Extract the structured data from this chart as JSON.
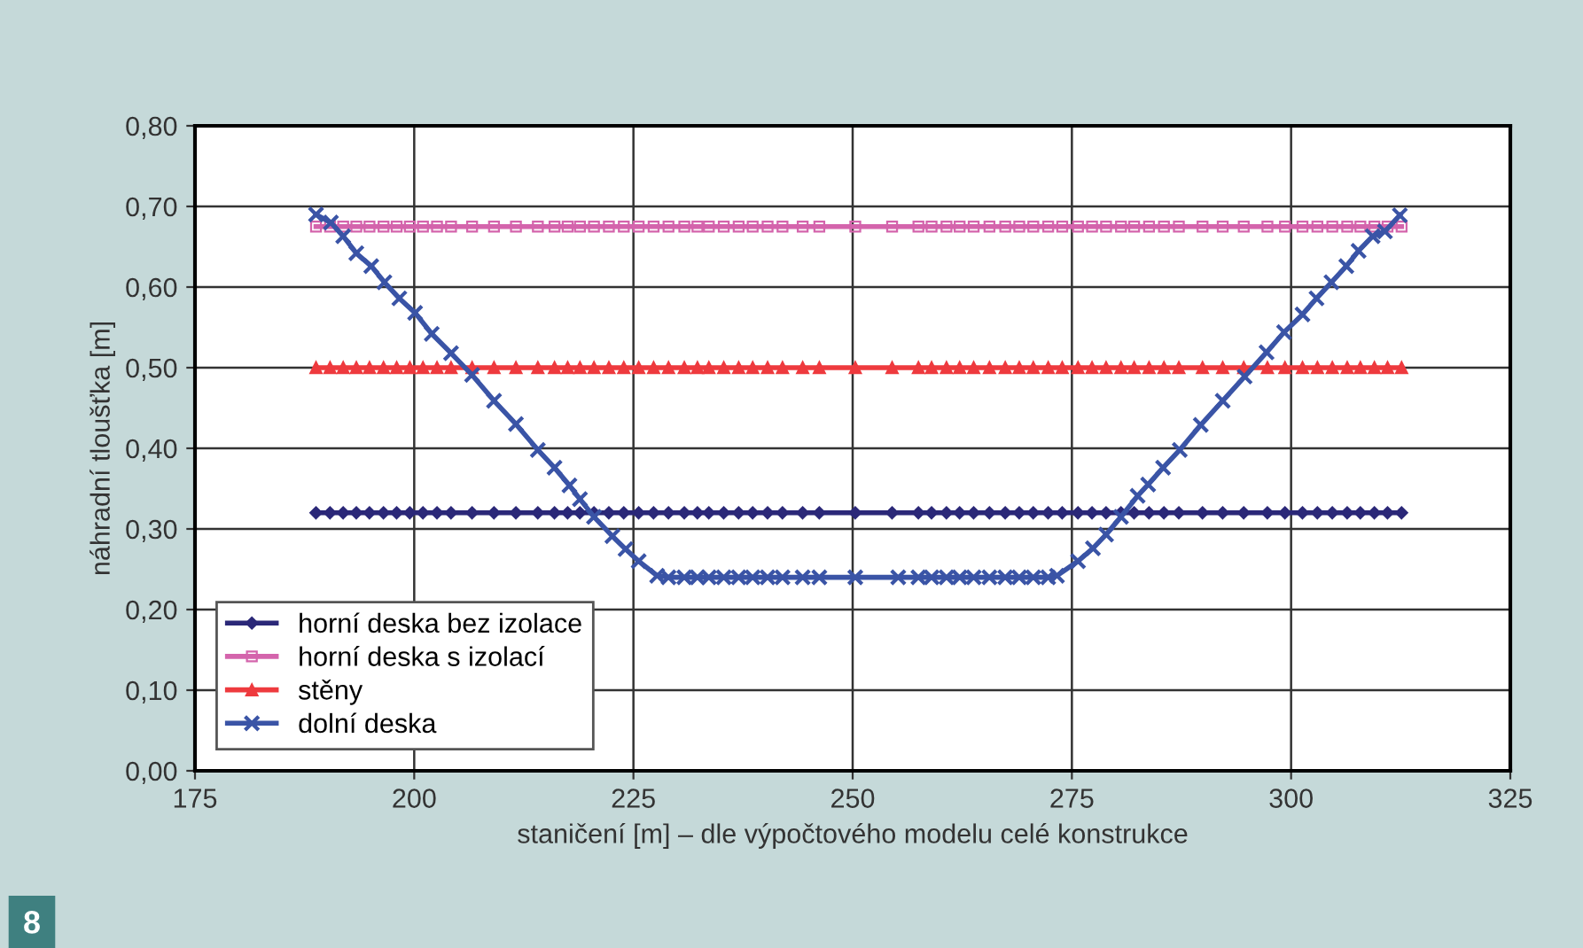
{
  "chart_data": {
    "type": "line",
    "xlabel": "staničení [m] – dle výpočtového modelu celé konstrukce",
    "ylabel": "náhradní tloušťka [m]",
    "x": [
      188.8,
      190.4,
      191.9,
      193.4,
      194.9,
      196.5,
      198.0,
      199.5,
      201.0,
      202.6,
      204.2,
      206.6,
      209.1,
      211.6,
      214.1,
      216.0,
      217.5,
      218.9,
      220.5,
      222.2,
      223.9,
      225.6,
      227.3,
      229.0,
      230.8,
      232.3,
      233.6,
      235.3,
      237.0,
      238.6,
      240.3,
      242.0,
      244.3,
      246.2,
      250.3,
      254.5,
      257.5,
      259.0,
      260.7,
      262.2,
      263.8,
      265.6,
      267.4,
      269.0,
      270.6,
      272.3,
      273.9,
      275.7,
      277.3,
      278.9,
      280.6,
      282.1,
      283.8,
      285.5,
      287.2,
      289.9,
      292.2,
      294.6,
      297.3,
      299.3,
      301.3,
      303.0,
      304.7,
      306.4,
      307.9,
      309.5,
      311.0,
      312.6
    ],
    "series": [
      {
        "name": "horní deska bez izolace",
        "color": "#2b2878",
        "marker": "diamond",
        "values": [
          0.32,
          0.32,
          0.32,
          0.32,
          0.32,
          0.32,
          0.32,
          0.32,
          0.32,
          0.32,
          0.32,
          0.32,
          0.32,
          0.32,
          0.32,
          0.32,
          0.32,
          0.32,
          0.32,
          0.32,
          0.32,
          0.32,
          0.32,
          0.32,
          0.32,
          0.32,
          0.32,
          0.32,
          0.32,
          0.32,
          0.32,
          0.32,
          0.32,
          0.32,
          0.32,
          0.32,
          0.32,
          0.32,
          0.32,
          0.32,
          0.32,
          0.32,
          0.32,
          0.32,
          0.32,
          0.32,
          0.32,
          0.32,
          0.32,
          0.32,
          0.32,
          0.32,
          0.32,
          0.32,
          0.32,
          0.32,
          0.32,
          0.32,
          0.32,
          0.32,
          0.32,
          0.32,
          0.32,
          0.32,
          0.32,
          0.32,
          0.32,
          0.32
        ]
      },
      {
        "name": "horní deska s izolací",
        "color": "#d464ac",
        "marker": "square",
        "values": [
          0.675,
          0.675,
          0.675,
          0.675,
          0.675,
          0.675,
          0.675,
          0.675,
          0.675,
          0.675,
          0.675,
          0.675,
          0.675,
          0.675,
          0.675,
          0.675,
          0.675,
          0.675,
          0.675,
          0.675,
          0.675,
          0.675,
          0.675,
          0.675,
          0.675,
          0.675,
          0.675,
          0.675,
          0.675,
          0.675,
          0.675,
          0.675,
          0.675,
          0.675,
          0.675,
          0.675,
          0.675,
          0.675,
          0.675,
          0.675,
          0.675,
          0.675,
          0.675,
          0.675,
          0.675,
          0.675,
          0.675,
          0.675,
          0.675,
          0.675,
          0.675,
          0.675,
          0.675,
          0.675,
          0.675,
          0.675,
          0.675,
          0.675,
          0.675,
          0.675,
          0.675,
          0.675,
          0.675,
          0.675,
          0.675,
          0.675,
          0.675,
          0.675
        ]
      },
      {
        "name": "stěny",
        "color": "#ee3a3e",
        "marker": "triangle",
        "values": [
          0.5,
          0.5,
          0.5,
          0.5,
          0.5,
          0.5,
          0.5,
          0.5,
          0.5,
          0.5,
          0.5,
          0.5,
          0.5,
          0.5,
          0.5,
          0.5,
          0.5,
          0.5,
          0.5,
          0.5,
          0.5,
          0.5,
          0.5,
          0.5,
          0.5,
          0.5,
          0.5,
          0.5,
          0.5,
          0.5,
          0.5,
          0.5,
          0.5,
          0.5,
          0.5,
          0.5,
          0.5,
          0.5,
          0.5,
          0.5,
          0.5,
          0.5,
          0.5,
          0.5,
          0.5,
          0.5,
          0.5,
          0.5,
          0.5,
          0.5,
          0.5,
          0.5,
          0.5,
          0.5,
          0.5,
          0.5,
          0.5,
          0.5,
          0.5,
          0.5,
          0.5,
          0.5,
          0.5,
          0.5,
          0.5,
          0.5,
          0.5,
          0.5
        ]
      },
      {
        "name": "dolní deska",
        "color": "#3a54a6",
        "marker": "cross",
        "x": [
          188.8,
          190.5,
          191.9,
          193.4,
          195.1,
          196.6,
          198.3,
          200.1,
          202.0,
          204.2,
          206.6,
          209.1,
          211.6,
          214.1,
          216.0,
          217.7,
          218.9,
          220.5,
          222.6,
          224.1,
          225.6,
          227.7,
          229.0,
          230.8,
          232.3,
          233.6,
          235.3,
          237.0,
          238.6,
          240.3,
          242.0,
          244.3,
          246.2,
          250.3,
          255.2,
          257.5,
          259.0,
          260.7,
          262.2,
          263.8,
          265.6,
          267.4,
          269.0,
          270.6,
          272.3,
          273.3,
          275.7,
          277.4,
          278.9,
          280.6,
          282.5,
          283.7,
          285.4,
          287.3,
          289.7,
          292.2,
          294.7,
          297.2,
          299.2,
          301.3,
          302.9,
          304.6,
          306.3,
          307.7,
          309.3,
          310.7,
          312.4
        ],
        "values": [
          0.69,
          0.68,
          0.663,
          0.642,
          0.626,
          0.606,
          0.586,
          0.568,
          0.542,
          0.518,
          0.491,
          0.459,
          0.43,
          0.398,
          0.376,
          0.354,
          0.337,
          0.315,
          0.291,
          0.275,
          0.26,
          0.242,
          0.24,
          0.24,
          0.24,
          0.24,
          0.24,
          0.24,
          0.24,
          0.24,
          0.24,
          0.24,
          0.24,
          0.24,
          0.24,
          0.24,
          0.24,
          0.24,
          0.24,
          0.24,
          0.24,
          0.24,
          0.24,
          0.24,
          0.24,
          0.242,
          0.26,
          0.276,
          0.293,
          0.315,
          0.341,
          0.355,
          0.376,
          0.398,
          0.429,
          0.459,
          0.489,
          0.519,
          0.544,
          0.566,
          0.586,
          0.606,
          0.626,
          0.645,
          0.663,
          0.669,
          0.689
        ]
      }
    ],
    "xlim": [
      175,
      325
    ],
    "xticks": [
      175,
      200,
      225,
      250,
      275,
      300,
      325
    ],
    "ylim": [
      0,
      0.8
    ],
    "yticks": [
      {
        "value": 0,
        "label": "0,00"
      },
      {
        "value": 0.1,
        "label": "0,10"
      },
      {
        "value": 0.2,
        "label": "0,20"
      },
      {
        "value": 0.3,
        "label": "0,30"
      },
      {
        "value": 0.4,
        "label": "0,40"
      },
      {
        "value": 0.5,
        "label": "0,50"
      },
      {
        "value": 0.6,
        "label": "0,60"
      },
      {
        "value": 0.7,
        "label": "0,70"
      },
      {
        "value": 0.8,
        "label": "0,80"
      }
    ],
    "grid": true,
    "legend": "bottom left",
    "line_style": "solid",
    "annotations": [
      "8"
    ]
  }
}
